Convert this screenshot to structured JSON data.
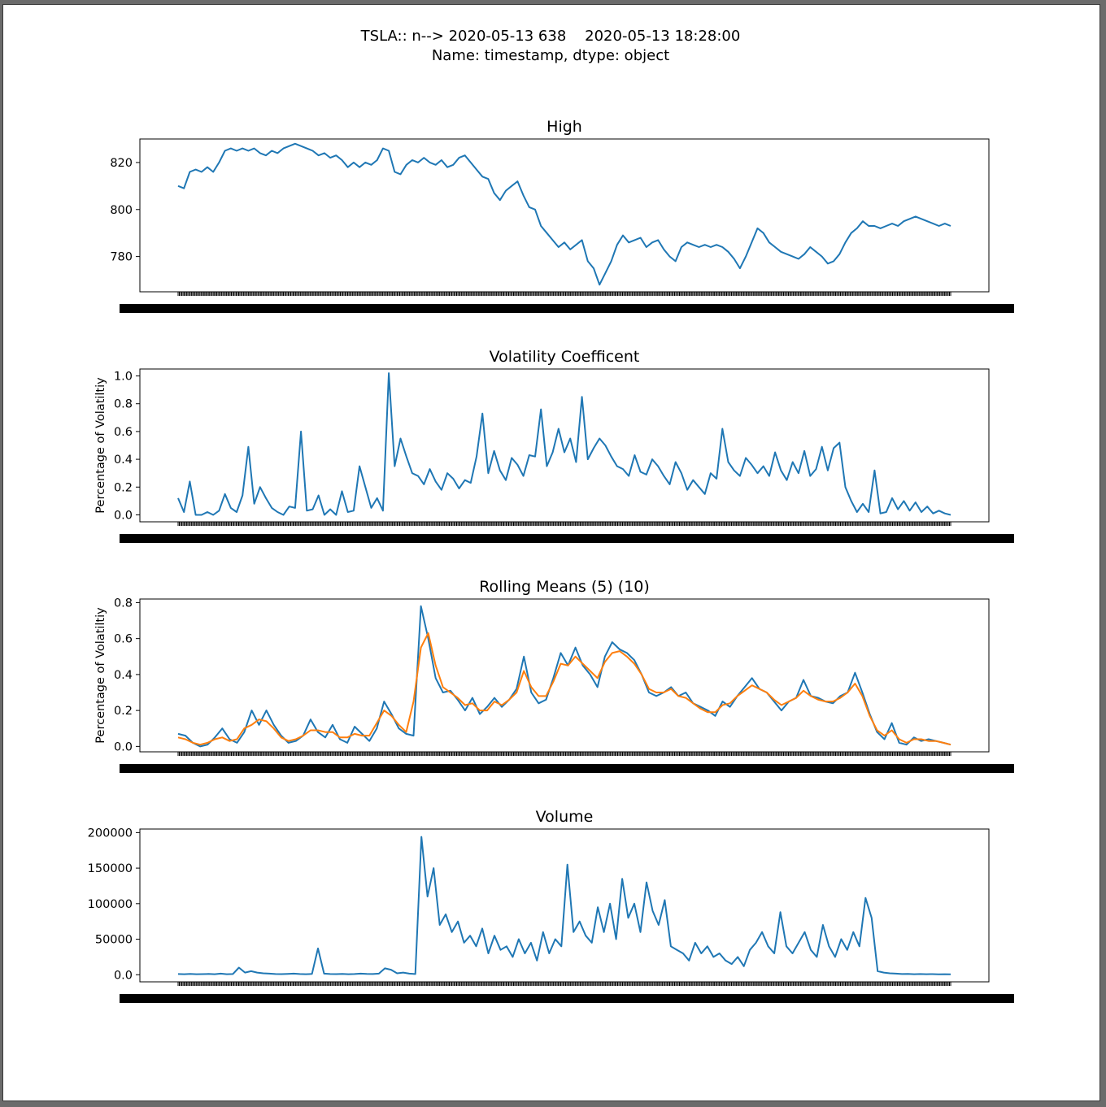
{
  "figure": {
    "suptitle_line1": "TSLA:: n--> 2020-05-13 638    2020-05-13 18:28:00",
    "suptitle_line2": "Name: timestamp, dtype: object"
  },
  "colors": {
    "series1": "#1f77b4",
    "series2": "#ff7f0e",
    "axes": "#000000"
  },
  "chart_data": [
    {
      "type": "line",
      "title": "High",
      "ylabel": "",
      "ylim": [
        765,
        830
      ],
      "yticks": [
        780,
        800,
        820
      ],
      "xlabel": "",
      "x_tick_labels": "dense overlapping timestamp labels (unreadable)",
      "series": [
        {
          "values": [
            810,
            809,
            816,
            817,
            816,
            818,
            816,
            820,
            825,
            826,
            825,
            826,
            825,
            826,
            824,
            823,
            825,
            824,
            826,
            827,
            828,
            827,
            826,
            825,
            823,
            824,
            822,
            823,
            821,
            818,
            820,
            818,
            820,
            819,
            821,
            826,
            825,
            816,
            815,
            819,
            821,
            820,
            822,
            820,
            819,
            821,
            818,
            819,
            822,
            823,
            820,
            817,
            814,
            813,
            807,
            804,
            808,
            810,
            812,
            806,
            801,
            800,
            793,
            790,
            787,
            784,
            786,
            783,
            785,
            787,
            778,
            775,
            768,
            773,
            778,
            785,
            789,
            786,
            787,
            788,
            784,
            786,
            787,
            783,
            780,
            778,
            784,
            786,
            785,
            784,
            785,
            784,
            785,
            784,
            782,
            779,
            775,
            780,
            786,
            792,
            790,
            786,
            784,
            782,
            781,
            780,
            779,
            781,
            784,
            782,
            780,
            777,
            778,
            781,
            786,
            790,
            792,
            795,
            793,
            793,
            792,
            793,
            794,
            793,
            795,
            796,
            797,
            796,
            795,
            794,
            793,
            794,
            793
          ]
        }
      ]
    },
    {
      "type": "line",
      "title": "Volatility Coefficent",
      "ylabel": "Percentage of Volatiltiy",
      "ylim": [
        -0.05,
        1.05
      ],
      "yticks": [
        0.0,
        0.2,
        0.4,
        0.6,
        0.8,
        1.0
      ],
      "x_tick_labels": "dense overlapping timestamp labels (unreadable)",
      "series": [
        {
          "values": [
            0.12,
            0.02,
            0.24,
            0.0,
            0.0,
            0.02,
            0.0,
            0.03,
            0.15,
            0.05,
            0.02,
            0.14,
            0.49,
            0.08,
            0.2,
            0.12,
            0.05,
            0.02,
            0.0,
            0.06,
            0.05,
            0.6,
            0.03,
            0.04,
            0.14,
            0.0,
            0.04,
            0.0,
            0.17,
            0.02,
            0.03,
            0.35,
            0.2,
            0.05,
            0.12,
            0.03,
            1.02,
            0.35,
            0.55,
            0.42,
            0.3,
            0.28,
            0.22,
            0.33,
            0.24,
            0.18,
            0.3,
            0.26,
            0.19,
            0.25,
            0.23,
            0.42,
            0.73,
            0.3,
            0.46,
            0.32,
            0.25,
            0.41,
            0.36,
            0.28,
            0.43,
            0.42,
            0.76,
            0.35,
            0.45,
            0.62,
            0.45,
            0.55,
            0.38,
            0.85,
            0.4,
            0.48,
            0.55,
            0.5,
            0.42,
            0.35,
            0.33,
            0.28,
            0.43,
            0.31,
            0.29,
            0.4,
            0.35,
            0.28,
            0.22,
            0.38,
            0.3,
            0.18,
            0.25,
            0.2,
            0.15,
            0.3,
            0.26,
            0.62,
            0.38,
            0.32,
            0.28,
            0.41,
            0.36,
            0.3,
            0.35,
            0.28,
            0.45,
            0.32,
            0.25,
            0.38,
            0.3,
            0.46,
            0.28,
            0.33,
            0.49,
            0.32,
            0.48,
            0.52,
            0.2,
            0.1,
            0.02,
            0.08,
            0.02,
            0.32,
            0.01,
            0.02,
            0.12,
            0.04,
            0.1,
            0.03,
            0.09,
            0.02,
            0.06,
            0.01,
            0.03,
            0.01,
            0.0
          ]
        }
      ]
    },
    {
      "type": "line",
      "title": "Rolling Means (5) (10)",
      "ylabel": "Percentage of Volatiltiy",
      "ylim": [
        -0.03,
        0.82
      ],
      "yticks": [
        0.0,
        0.2,
        0.4,
        0.6,
        0.8
      ],
      "x_tick_labels": "dense overlapping timestamp labels (unreadable)",
      "series": [
        {
          "values": [
            0.07,
            0.06,
            0.02,
            0.0,
            0.01,
            0.05,
            0.1,
            0.04,
            0.02,
            0.08,
            0.2,
            0.12,
            0.2,
            0.12,
            0.06,
            0.02,
            0.03,
            0.06,
            0.15,
            0.08,
            0.05,
            0.12,
            0.04,
            0.02,
            0.11,
            0.07,
            0.03,
            0.1,
            0.25,
            0.18,
            0.1,
            0.07,
            0.06,
            0.78,
            0.6,
            0.38,
            0.3,
            0.31,
            0.26,
            0.2,
            0.27,
            0.18,
            0.22,
            0.27,
            0.22,
            0.26,
            0.32,
            0.5,
            0.3,
            0.24,
            0.26,
            0.38,
            0.52,
            0.45,
            0.55,
            0.45,
            0.4,
            0.33,
            0.5,
            0.58,
            0.54,
            0.52,
            0.48,
            0.4,
            0.3,
            0.28,
            0.3,
            0.33,
            0.28,
            0.3,
            0.24,
            0.22,
            0.2,
            0.17,
            0.25,
            0.22,
            0.28,
            0.33,
            0.38,
            0.32,
            0.3,
            0.25,
            0.2,
            0.25,
            0.27,
            0.37,
            0.28,
            0.27,
            0.25,
            0.24,
            0.28,
            0.3,
            0.41,
            0.3,
            0.18,
            0.08,
            0.04,
            0.13,
            0.02,
            0.01,
            0.05,
            0.03,
            0.04,
            0.03,
            0.02,
            0.01
          ]
        },
        {
          "values": [
            0.05,
            0.04,
            0.02,
            0.01,
            0.02,
            0.04,
            0.05,
            0.03,
            0.04,
            0.1,
            0.12,
            0.15,
            0.14,
            0.1,
            0.05,
            0.03,
            0.04,
            0.06,
            0.09,
            0.09,
            0.08,
            0.08,
            0.05,
            0.05,
            0.07,
            0.06,
            0.06,
            0.13,
            0.2,
            0.17,
            0.12,
            0.08,
            0.25,
            0.55,
            0.63,
            0.45,
            0.33,
            0.3,
            0.27,
            0.23,
            0.24,
            0.2,
            0.2,
            0.25,
            0.23,
            0.26,
            0.3,
            0.42,
            0.33,
            0.28,
            0.28,
            0.36,
            0.46,
            0.45,
            0.5,
            0.46,
            0.42,
            0.38,
            0.47,
            0.52,
            0.53,
            0.5,
            0.46,
            0.4,
            0.32,
            0.3,
            0.3,
            0.32,
            0.28,
            0.27,
            0.24,
            0.21,
            0.19,
            0.19,
            0.23,
            0.24,
            0.28,
            0.31,
            0.34,
            0.32,
            0.3,
            0.26,
            0.23,
            0.25,
            0.27,
            0.31,
            0.28,
            0.26,
            0.25,
            0.25,
            0.27,
            0.3,
            0.35,
            0.28,
            0.17,
            0.09,
            0.06,
            0.09,
            0.04,
            0.02,
            0.04,
            0.04,
            0.03,
            0.03,
            0.02,
            0.01
          ]
        }
      ]
    },
    {
      "type": "line",
      "title": "Volume",
      "ylabel": "",
      "ylim": [
        -10000,
        205000
      ],
      "yticks": [
        0,
        50000,
        100000,
        150000,
        200000
      ],
      "x_tick_labels": "dense overlapping timestamp labels (unreadable)",
      "series": [
        {
          "values": [
            1000,
            800,
            1200,
            700,
            900,
            1100,
            800,
            1500,
            700,
            1000,
            10000,
            3000,
            5000,
            3000,
            2000,
            1500,
            1000,
            900,
            1200,
            1500,
            1000,
            800,
            1100,
            37000,
            1500,
            1000,
            900,
            1200,
            800,
            1000,
            1500,
            1100,
            1000,
            1600,
            9000,
            7000,
            2000,
            3000,
            1500,
            1000,
            194000,
            110000,
            150000,
            70000,
            85000,
            60000,
            75000,
            45000,
            55000,
            40000,
            65000,
            30000,
            55000,
            35000,
            40000,
            25000,
            50000,
            30000,
            45000,
            20000,
            60000,
            30000,
            50000,
            40000,
            155000,
            60000,
            75000,
            55000,
            45000,
            95000,
            60000,
            100000,
            50000,
            135000,
            80000,
            100000,
            60000,
            130000,
            90000,
            70000,
            105000,
            40000,
            35000,
            30000,
            20000,
            45000,
            30000,
            40000,
            25000,
            30000,
            20000,
            15000,
            25000,
            12000,
            35000,
            45000,
            60000,
            40000,
            30000,
            88000,
            40000,
            30000,
            45000,
            60000,
            35000,
            25000,
            70000,
            40000,
            25000,
            50000,
            35000,
            60000,
            40000,
            108000,
            80000,
            5000,
            3000,
            2000,
            1500,
            1000,
            1200,
            800,
            1000,
            700,
            900,
            600,
            800,
            500
          ]
        }
      ]
    }
  ]
}
